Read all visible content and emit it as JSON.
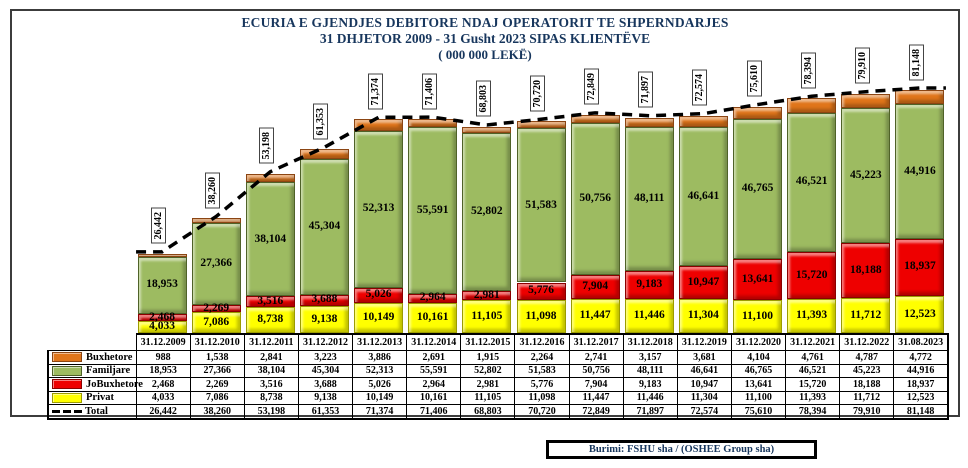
{
  "title": {
    "line1": "ECURIA E GJENDJES DEBITORE NDAJ OPERATORIT TE SHPERNDARJES",
    "line2": "31 DHJETOR 2009  - 31  Gusht 2023 SIPAS KLIENTËVE",
    "line3": "( 000 000 LEKË)"
  },
  "footer": {
    "source_label": "Burimi: FSHU sha / (OSHEE Group sha)"
  },
  "chart_data": {
    "type": "bar",
    "stacked": true,
    "title": "ECURIA E GJENDJES DEBITORE NDAJ OPERATORIT TE SHPERNDARJES 31 DHJETOR 2009 - 31 Gusht 2023 SIPAS KLIENTËVE (000 000 LEKË)",
    "xlabel": "",
    "ylabel": "",
    "grid": false,
    "legend_position": "table-left",
    "ylim": [
      0,
      81148
    ],
    "categories": [
      "31.12.2009",
      "31.12.2010",
      "31.12.2011",
      "31.12.2012",
      "31.12.2013",
      "31.12.2014",
      "31.12.2015",
      "31.12.2016",
      "31.12.2017",
      "31.12.2018",
      "31.12.2019",
      "31.12.2020",
      "31.12.2021",
      "31.12.2022",
      "31.08.2023"
    ],
    "stack_order_bottom_to_top": [
      "Privat",
      "JoBuxhetore",
      "Familjare",
      "Buxhetore"
    ],
    "series": [
      {
        "name": "Buxhetore",
        "color": "#E0751A",
        "border": "#8B4513",
        "show_bar_labels": false,
        "values": [
          988,
          1538,
          2841,
          3223,
          3886,
          2691,
          1915,
          2264,
          2741,
          3157,
          3681,
          4104,
          4761,
          4787,
          4772
        ]
      },
      {
        "name": "Familjare",
        "color": "#9DBB61",
        "border": "#4F6228",
        "show_bar_labels": true,
        "values": [
          18953,
          27366,
          38104,
          45304,
          52313,
          55591,
          52802,
          51583,
          50756,
          48111,
          46641,
          46765,
          46521,
          45223,
          44916
        ]
      },
      {
        "name": "JoBuxhetore",
        "color": "#EE0000",
        "border": "#8B0000",
        "show_bar_labels": true,
        "values": [
          2468,
          2269,
          3516,
          3688,
          5026,
          2964,
          2981,
          5776,
          7904,
          9183,
          10947,
          13641,
          15720,
          18188,
          18937
        ]
      },
      {
        "name": "Privat",
        "color": "#FFFF00",
        "border": "#9C9C00",
        "show_bar_labels": true,
        "values": [
          4033,
          7086,
          8738,
          9138,
          10149,
          10161,
          11105,
          11098,
          11447,
          11446,
          11304,
          11100,
          11393,
          11712,
          12523
        ]
      }
    ],
    "totals": {
      "name": "Total",
      "style": "dashed-line",
      "color": "#000000",
      "values": [
        26442,
        38260,
        53198,
        61353,
        71374,
        71406,
        68803,
        70720,
        72849,
        71897,
        72574,
        75610,
        78394,
        79910,
        81148
      ]
    }
  }
}
